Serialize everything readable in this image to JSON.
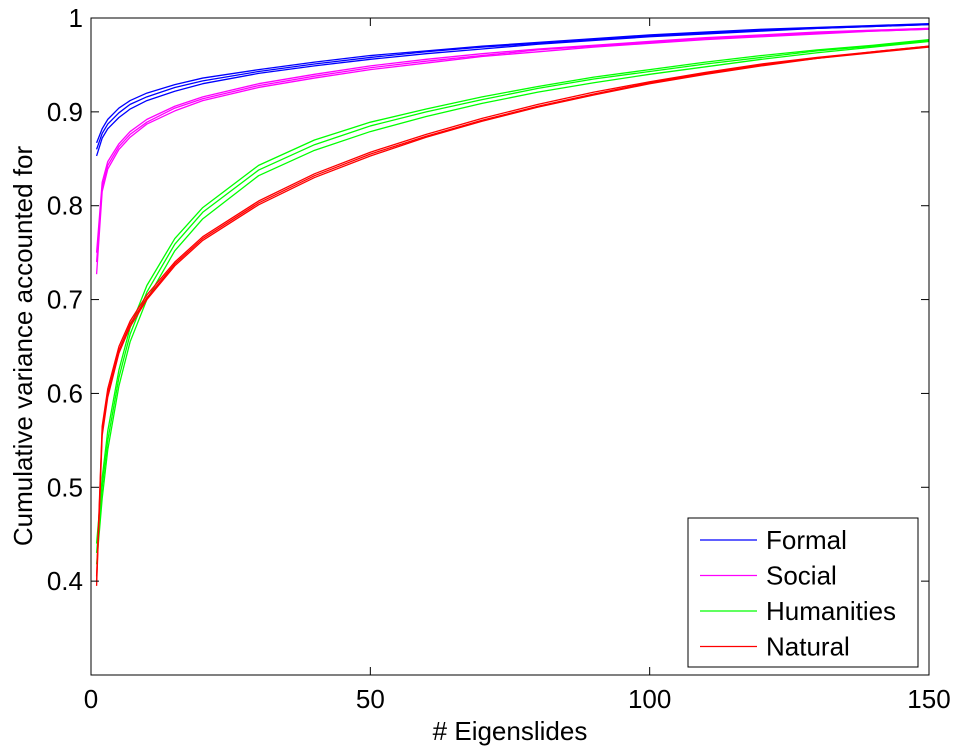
{
  "chart_data": {
    "type": "line",
    "xlabel": "# Eigenslides",
    "ylabel": "Cumulative variance accounted for",
    "xlim": [
      0,
      150
    ],
    "ylim": [
      0.3,
      1.0
    ],
    "xticks": [
      0,
      50,
      100,
      150
    ],
    "yticks": [
      0.4,
      0.5,
      0.6,
      0.7,
      0.8,
      0.9,
      1.0
    ],
    "xtick_labels": [
      "0",
      "50",
      "100",
      "150"
    ],
    "ytick_labels": [
      "0.4",
      "0.5",
      "0.6",
      "0.7",
      "0.8",
      "0.9",
      "1"
    ],
    "grid": false,
    "legend_position": "bottom-right",
    "x": [
      1,
      2,
      3,
      5,
      7,
      10,
      15,
      20,
      30,
      40,
      50,
      60,
      70,
      80,
      90,
      100,
      110,
      120,
      130,
      140,
      150
    ],
    "series": [
      {
        "name": "Formal",
        "color": "#0000ff",
        "lines": [
          [
            0.867,
            0.882,
            0.892,
            0.904,
            0.912,
            0.92,
            0.929,
            0.936,
            0.945,
            0.953,
            0.96,
            0.965,
            0.97,
            0.974,
            0.978,
            0.982,
            0.985,
            0.988,
            0.99,
            0.992,
            0.994
          ],
          [
            0.86,
            0.877,
            0.887,
            0.899,
            0.908,
            0.916,
            0.926,
            0.933,
            0.943,
            0.951,
            0.958,
            0.964,
            0.969,
            0.973,
            0.977,
            0.981,
            0.984,
            0.987,
            0.989,
            0.991,
            0.993
          ],
          [
            0.853,
            0.872,
            0.882,
            0.894,
            0.903,
            0.912,
            0.922,
            0.93,
            0.941,
            0.949,
            0.956,
            0.962,
            0.967,
            0.972,
            0.976,
            0.98,
            0.983,
            0.986,
            0.989,
            0.991,
            0.993
          ]
        ]
      },
      {
        "name": "Social",
        "color": "#ff00ff",
        "lines": [
          [
            0.75,
            0.825,
            0.847,
            0.866,
            0.879,
            0.892,
            0.906,
            0.916,
            0.93,
            0.94,
            0.949,
            0.956,
            0.962,
            0.967,
            0.971,
            0.975,
            0.979,
            0.982,
            0.985,
            0.987,
            0.989
          ],
          [
            0.74,
            0.82,
            0.843,
            0.863,
            0.876,
            0.889,
            0.904,
            0.914,
            0.928,
            0.938,
            0.947,
            0.954,
            0.96,
            0.966,
            0.97,
            0.974,
            0.978,
            0.981,
            0.984,
            0.986,
            0.988
          ],
          [
            0.727,
            0.815,
            0.839,
            0.86,
            0.873,
            0.887,
            0.901,
            0.912,
            0.926,
            0.936,
            0.945,
            0.952,
            0.959,
            0.964,
            0.969,
            0.973,
            0.977,
            0.98,
            0.983,
            0.986,
            0.988
          ]
        ]
      },
      {
        "name": "Humanities",
        "color": "#00ff00",
        "lines": [
          [
            0.44,
            0.51,
            0.56,
            0.625,
            0.67,
            0.715,
            0.765,
            0.798,
            0.843,
            0.87,
            0.889,
            0.903,
            0.916,
            0.927,
            0.937,
            0.945,
            0.953,
            0.96,
            0.966,
            0.971,
            0.977
          ],
          [
            0.43,
            0.5,
            0.55,
            0.617,
            0.663,
            0.708,
            0.759,
            0.793,
            0.838,
            0.865,
            0.885,
            0.9,
            0.913,
            0.925,
            0.935,
            0.943,
            0.951,
            0.958,
            0.965,
            0.97,
            0.976
          ],
          [
            0.418,
            0.488,
            0.54,
            0.608,
            0.655,
            0.7,
            0.752,
            0.786,
            0.832,
            0.859,
            0.879,
            0.895,
            0.909,
            0.921,
            0.931,
            0.94,
            0.948,
            0.956,
            0.963,
            0.969,
            0.975
          ]
        ]
      },
      {
        "name": "Natural",
        "color": "#ff0000",
        "lines": [
          [
            0.405,
            0.565,
            0.605,
            0.65,
            0.677,
            0.705,
            0.74,
            0.767,
            0.805,
            0.834,
            0.857,
            0.876,
            0.893,
            0.908,
            0.921,
            0.932,
            0.942,
            0.951,
            0.958,
            0.964,
            0.97
          ],
          [
            0.4,
            0.56,
            0.6,
            0.646,
            0.674,
            0.702,
            0.738,
            0.765,
            0.803,
            0.832,
            0.855,
            0.874,
            0.891,
            0.906,
            0.919,
            0.931,
            0.941,
            0.95,
            0.957,
            0.964,
            0.97
          ],
          [
            0.395,
            0.555,
            0.596,
            0.643,
            0.671,
            0.7,
            0.736,
            0.763,
            0.801,
            0.83,
            0.853,
            0.873,
            0.89,
            0.905,
            0.918,
            0.93,
            0.94,
            0.949,
            0.957,
            0.963,
            0.969
          ]
        ]
      }
    ]
  }
}
